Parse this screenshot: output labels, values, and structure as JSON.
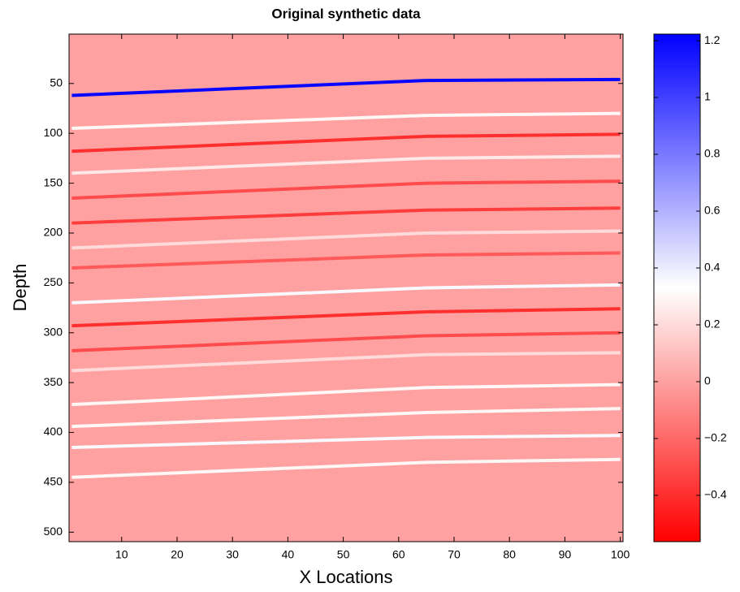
{
  "chart_data": {
    "type": "heatmap",
    "title": "Original synthetic data",
    "x_label": "X Locations",
    "y_label": "Depth",
    "xlim": [
      0.5,
      100.5
    ],
    "xticks": [
      10,
      20,
      30,
      40,
      50,
      60,
      70,
      80,
      90,
      100
    ],
    "ylim": [
      0.5,
      509.5
    ],
    "yticks": [
      50,
      100,
      150,
      200,
      250,
      300,
      350,
      400,
      450,
      500
    ],
    "y_reversed": true,
    "colormap": [
      "#ff0000",
      "#ffffff",
      "#0000ff"
    ],
    "clim": [
      -0.563,
      1.223
    ],
    "colorbar_ticks": [
      {
        "value": -0.4,
        "label": "−0.4"
      },
      {
        "value": -0.2,
        "label": "−0.2"
      },
      0,
      0.2,
      0.4,
      0.6,
      0.8,
      1,
      1.2
    ],
    "background_value": 0,
    "reflector_x": [
      1,
      65,
      100
    ],
    "reflectors": [
      {
        "depth": [
          62,
          47,
          46
        ],
        "amplitude": 1.2
      },
      {
        "depth": [
          95,
          82,
          80
        ],
        "amplitude": 0.3
      },
      {
        "depth": [
          118,
          103,
          101
        ],
        "amplitude": -0.4
      },
      {
        "depth": [
          140,
          125,
          123
        ],
        "amplitude": 0.25
      },
      {
        "depth": [
          165,
          150,
          148
        ],
        "amplitude": -0.3
      },
      {
        "depth": [
          190,
          177,
          175
        ],
        "amplitude": -0.35
      },
      {
        "depth": [
          215,
          200,
          198
        ],
        "amplitude": 0.2
      },
      {
        "depth": [
          235,
          222,
          220
        ],
        "amplitude": -0.25
      },
      {
        "depth": [
          270,
          255,
          252
        ],
        "amplitude": 0.35
      },
      {
        "depth": [
          293,
          279,
          276
        ],
        "amplitude": -0.4
      },
      {
        "depth": [
          318,
          303,
          300
        ],
        "amplitude": -0.3
      },
      {
        "depth": [
          338,
          322,
          320
        ],
        "amplitude": 0.2
      },
      {
        "depth": [
          372,
          355,
          352
        ],
        "amplitude": 0.3
      },
      {
        "depth": [
          394,
          380,
          376
        ],
        "amplitude": 0.3
      },
      {
        "depth": [
          415,
          405,
          403
        ],
        "amplitude": 0.35
      },
      {
        "depth": [
          445,
          430,
          427
        ],
        "amplitude": 0.3
      }
    ]
  }
}
